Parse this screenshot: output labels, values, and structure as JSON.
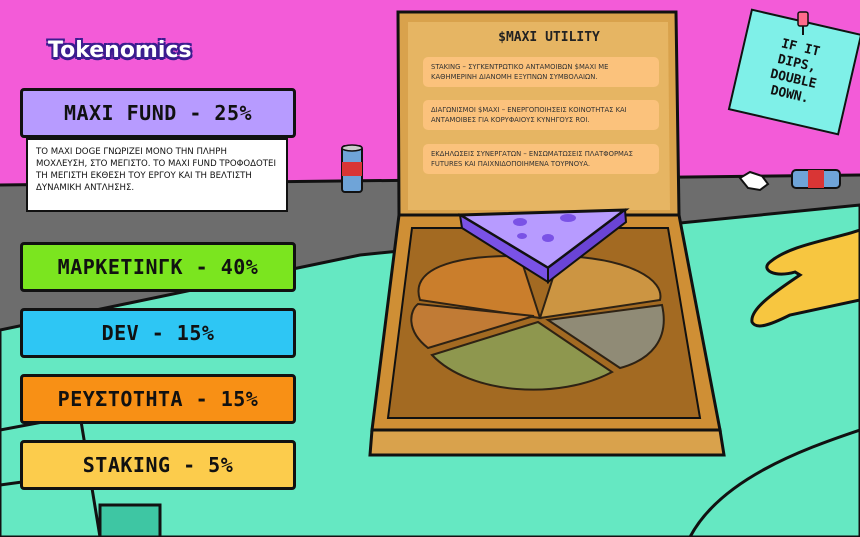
{
  "brand": "Tokenomics",
  "allocations": {
    "maxi_fund": {
      "label": "MAXI FUND - 25%",
      "color": "#b79bff"
    },
    "marketing": {
      "label": "ΜΑΡΚΕΤΙΝΓΚ - 40%",
      "color": "#7be51f"
    },
    "dev": {
      "label": "DEV - 15%",
      "color": "#2ec6f4"
    },
    "liquidity": {
      "label": "ΡΕΥΣΤΟΤΗΤΑ - 15%",
      "color": "#f89015"
    },
    "staking": {
      "label": "STAKING - 5%",
      "color": "#fccc4c"
    }
  },
  "maxi_fund_description": "ΤΟ MAXI DOGE ΓΝΩΡΙΖΕΙ ΜΟΝΟ ΤΗΝ ΠΛΗΡΗ ΜΟΧΛΕΥΣΗ, ΣΤΟ ΜΕΓΙΣΤΟ. ΤΟ MAXI FUND ΤΡΟΦΟΔΟΤΕΙ ΤΗ ΜΕΓΙΣΤΗ ΕΚΘΕΣΗ ΤΟΥ ΕΡΓΟΥ ΚΑΙ ΤΗ ΒΕΛΤΙΣΤΗ ΔΥΝΑΜΙΚΗ ΑΝΤΛΗΣΗΣ.",
  "utility": {
    "title": "$MAXI UTILITY",
    "items": [
      "STAKING – ΣΥΓΚΕΝΤΡΩΤΙΚΟ ΑΝΤΑΜΟΙΒΩΝ $MAXI ΜΕ ΚΑΘΗΜΕΡΙΝΗ ΔΙΑΝΟΜΗ ΕΞΥΠΝΩΝ ΣΥΜΒΟΛΑΙΩΝ.",
      "ΔΙΑΓΩΝΙΣΜΟΙ $MAXI – ΕΝΕΡΓΟΠΟΙΗΣΕΙΣ ΚΟΙΝΟΤΗΤΑΣ ΚΑΙ ΑΝΤΑΜΟΙΒΕΣ ΓΙΑ ΚΟΡΥΦΑΙΟΥΣ ΚΥΝΗΓΟΥΣ ROI.",
      "ΕΚΔΗΛΩΣΕΙΣ ΣΥΝΕΡΓΑΤΩΝ – ΕΝΣΩΜΑΤΩΣΕΙΣ ΠΛΑΤΦΟΡΜΑΣ FUTURES ΚΑΙ ΠΑΙΧΝΙΔΟΠΟΙΗΜΕΝΑ ΤΟΥΡΝΟΥΑ."
    ]
  },
  "sticky_note": "IF IT DIPS, DOUBLE DOWN.",
  "colors": {
    "background": "#f35bd8",
    "table": "#65e8c2",
    "box": "#d9a24c"
  }
}
